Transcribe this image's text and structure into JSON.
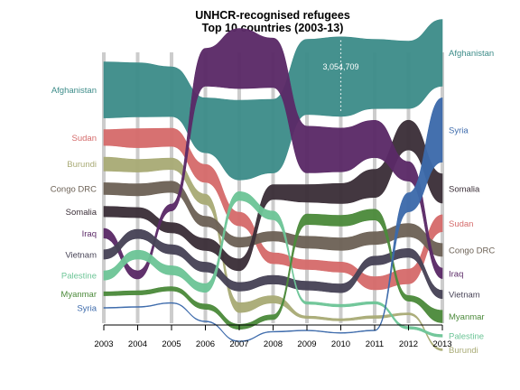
{
  "chart_data": {
    "type": "area",
    "title": "UNHCR-recognised refugees",
    "subtitle": "Top 10 countries (2003-13)",
    "x": [
      "2003",
      "2004",
      "2005",
      "2006",
      "2007",
      "2008",
      "2009",
      "2010",
      "2011",
      "2012",
      "2013"
    ],
    "annotation": {
      "x": "2010",
      "series": "Afghanistan",
      "text": "3,054,709"
    },
    "series": [
      {
        "name": "Afghanistan",
        "color": "#3d8c89",
        "order": [
          1,
          1,
          1,
          2,
          2,
          2,
          1,
          1,
          1,
          1,
          1
        ],
        "values": [
          2150000,
          2080000,
          1910000,
          2110000,
          3060000,
          2830000,
          2890000,
          3054709,
          2660000,
          2590000,
          2560000
        ]
      },
      {
        "name": "Sudan",
        "color": "#d56b6b",
        "order": [
          2,
          2,
          2,
          3,
          4,
          6,
          6,
          6,
          7,
          7,
          4
        ],
        "values": [
          606000,
          731000,
          693000,
          686000,
          523000,
          419000,
          368000,
          387000,
          500000,
          569000,
          649000
        ]
      },
      {
        "name": "Burundi",
        "color": "#a9ab76",
        "order": [
          3,
          3,
          3,
          4,
          8,
          8,
          9,
          9,
          9,
          9,
          10
        ],
        "values": [
          532000,
          485000,
          438000,
          397000,
          375000,
          281000,
          94000,
          84000,
          101000,
          73000,
          73000
        ]
      },
      {
        "name": "Congo DRC",
        "color": "#6d6256",
        "order": [
          4,
          4,
          4,
          5,
          5,
          5,
          5,
          5,
          5,
          5,
          5
        ],
        "values": [
          453000,
          462000,
          430000,
          401000,
          370000,
          368000,
          456000,
          477000,
          491000,
          509000,
          499000
        ]
      },
      {
        "name": "Somalia",
        "color": "#3b2f38",
        "order": [
          5,
          5,
          6,
          6,
          6,
          3,
          3,
          3,
          3,
          2,
          3
        ],
        "values": [
          402000,
          389000,
          395000,
          464000,
          457000,
          561000,
          678000,
          770000,
          1080000,
          1140000,
          1120000
        ]
      },
      {
        "name": "Iraq",
        "color": "#5b2a67",
        "order": [
          6,
          8,
          5,
          1,
          1,
          1,
          2,
          2,
          2,
          3,
          6
        ],
        "values": [
          368000,
          311000,
          262000,
          1450000,
          2310000,
          1900000,
          1790000,
          1680000,
          1430000,
          746000,
          401000
        ]
      },
      {
        "name": "Vietnam",
        "color": "#474356",
        "order": [
          7,
          6,
          7,
          7,
          7,
          7,
          7,
          7,
          6,
          6,
          7
        ],
        "values": [
          363000,
          350000,
          358000,
          374000,
          328000,
          328000,
          339000,
          339000,
          337000,
          336000,
          314000
        ]
      },
      {
        "name": "Palestine",
        "color": "#6dc597",
        "order": [
          8,
          7,
          8,
          8,
          3,
          4,
          8,
          8,
          8,
          10,
          9
        ],
        "values": [
          350000,
          340000,
          350000,
          334000,
          335000,
          334000,
          95000,
          95000,
          94000,
          96000,
          97000
        ]
      },
      {
        "name": "Myanmar",
        "color": "#4c8a3b",
        "order": [
          9,
          9,
          9,
          9,
          9,
          9,
          4,
          4,
          4,
          8,
          8
        ],
        "values": [
          152000,
          161000,
          164000,
          202000,
          191000,
          184000,
          406000,
          416000,
          415000,
          215000,
          480000
        ]
      },
      {
        "name": "Syria",
        "color": "#3c6aab",
        "order": [
          10,
          10,
          10,
          10,
          10,
          10,
          10,
          10,
          10,
          4,
          2
        ],
        "values": [
          18000,
          18000,
          16000,
          12000,
          14000,
          15000,
          17000,
          18000,
          20000,
          729000,
          2470000
        ]
      }
    ],
    "left_labels": [
      "Afghanistan",
      "Sudan",
      "Burundi",
      "Congo DRC",
      "Somalia",
      "Iraq",
      "Vietnam",
      "Palestine",
      "Myanmar",
      "Syria"
    ],
    "right_labels": [
      "Afghanistan",
      "Syria",
      "Somalia",
      "Sudan",
      "Congo DRC",
      "Iraq",
      "Vietnam",
      "Myanmar",
      "Palestine",
      "Burundi"
    ]
  }
}
